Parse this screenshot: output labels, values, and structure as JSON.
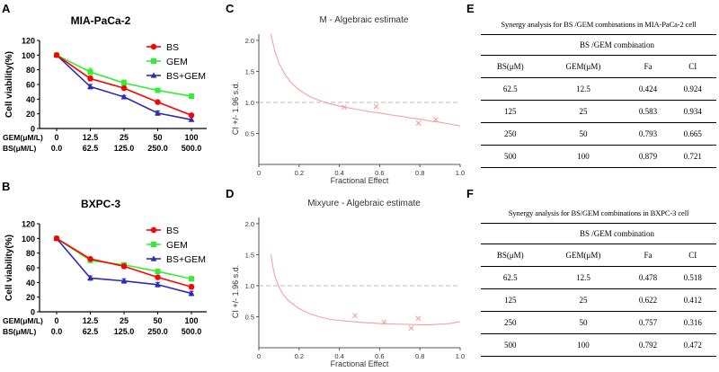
{
  "colors": {
    "bs": "#ff0000",
    "gem": "#33ee33",
    "combo": "#2b2bb8",
    "ci_curve": "#f4a0a0",
    "ref_line": "#bbbbbb"
  },
  "chart_data": [
    {
      "panel_label": "A",
      "type": "line",
      "title": "MIA-PaCa-2",
      "ylabel": "Cell viability(%)",
      "ylim": [
        0,
        120
      ],
      "yticks": [
        0,
        20,
        40,
        60,
        80,
        100,
        120
      ],
      "categories": [
        "0",
        "12.5",
        "25",
        "50",
        "100"
      ],
      "row_labels": [
        "GEM(μM/L)",
        "BS(μM/L)"
      ],
      "bs_categories": [
        "0.0",
        "62.5",
        "125.0",
        "250.0",
        "500.0"
      ],
      "series": [
        {
          "name": "BS",
          "color_key": "bs",
          "marker": "circle",
          "values": [
            100,
            68,
            55,
            36,
            18
          ],
          "errors": [
            1,
            3,
            2,
            2,
            1
          ]
        },
        {
          "name": "GEM",
          "color_key": "gem",
          "marker": "square",
          "values": [
            100,
            77,
            62,
            52,
            44
          ],
          "errors": [
            1,
            5,
            4,
            2,
            3
          ]
        },
        {
          "name": "BS+GEM",
          "color_key": "combo",
          "marker": "triangle",
          "values": [
            100,
            57,
            43,
            21,
            12
          ],
          "errors": [
            1,
            3,
            2,
            3,
            1
          ]
        }
      ]
    },
    {
      "panel_label": "B",
      "type": "line",
      "title": "BXPC-3",
      "ylabel": "Cell viability(%)",
      "ylim": [
        0,
        120
      ],
      "yticks": [
        0,
        20,
        40,
        60,
        80,
        100,
        120
      ],
      "categories": [
        "0",
        "12.5",
        "25",
        "50",
        "100"
      ],
      "row_labels": [
        "GEM(μM/L)",
        "BS(μM/L)"
      ],
      "bs_categories": [
        "0.0",
        "62.5",
        "125.0",
        "250.0",
        "500.0"
      ],
      "series": [
        {
          "name": "BS",
          "color_key": "bs",
          "marker": "circle",
          "values": [
            100,
            72,
            62,
            47,
            34
          ],
          "errors": [
            1,
            2,
            3,
            2,
            3
          ]
        },
        {
          "name": "GEM",
          "color_key": "gem",
          "marker": "square",
          "values": [
            100,
            70,
            64,
            55,
            45
          ],
          "errors": [
            1,
            2,
            2,
            2,
            3
          ]
        },
        {
          "name": "BS+GEM",
          "color_key": "combo",
          "marker": "triangle",
          "values": [
            100,
            46,
            42,
            37,
            25
          ],
          "errors": [
            1,
            3,
            3,
            3,
            3
          ]
        }
      ]
    },
    {
      "panel_label": "C",
      "type": "scatter",
      "title": "M - Algebraic estimate",
      "xlabel": "Fractional Effect",
      "ylabel": "CI +/- 1.96 s.d.",
      "xlim": [
        0,
        1
      ],
      "ylim": [
        0,
        2.1
      ],
      "xticks": [
        "0",
        "0.2",
        "0.4",
        "0.6",
        "0.8",
        "1.0"
      ],
      "yticks": [
        "0.5",
        "1.0",
        "1.5",
        "2.0"
      ],
      "reference_y": 1.0,
      "curve": {
        "x": [
          0.06,
          0.08,
          0.1,
          0.13,
          0.16,
          0.2,
          0.25,
          0.3,
          0.35,
          0.4,
          0.45,
          0.5,
          0.55,
          0.6,
          0.65,
          0.7,
          0.75,
          0.8,
          0.85,
          0.9,
          0.95,
          1.0
        ],
        "y": [
          2.1,
          1.82,
          1.63,
          1.45,
          1.32,
          1.2,
          1.1,
          1.03,
          0.98,
          0.94,
          0.91,
          0.88,
          0.85,
          0.83,
          0.8,
          0.78,
          0.75,
          0.73,
          0.7,
          0.68,
          0.65,
          0.62
        ]
      },
      "points": {
        "x": [
          0.424,
          0.583,
          0.793,
          0.879
        ],
        "y": [
          0.924,
          0.934,
          0.665,
          0.721
        ]
      }
    },
    {
      "panel_label": "D",
      "type": "scatter",
      "title": "Mixyure - Algebraic estimate",
      "xlabel": "Fractional Effect",
      "ylabel": "CI +/- 1.96 s.d.",
      "xlim": [
        0,
        1
      ],
      "ylim": [
        0,
        2.1
      ],
      "xticks": [
        "0",
        "0.2",
        "0.4",
        "0.6",
        "0.8",
        "1.0"
      ],
      "yticks": [
        "0.5",
        "1.0",
        "1.5",
        "2.0"
      ],
      "reference_y": 1.0,
      "curve": {
        "x": [
          0.06,
          0.07,
          0.08,
          0.1,
          0.12,
          0.15,
          0.2,
          0.25,
          0.3,
          0.35,
          0.4,
          0.5,
          0.6,
          0.7,
          0.8,
          0.85,
          0.9,
          0.95,
          1.0
        ],
        "y": [
          1.5,
          1.3,
          1.15,
          0.98,
          0.86,
          0.75,
          0.63,
          0.55,
          0.5,
          0.46,
          0.44,
          0.41,
          0.39,
          0.38,
          0.37,
          0.37,
          0.38,
          0.39,
          0.42
        ]
      },
      "points": {
        "x": [
          0.478,
          0.622,
          0.757,
          0.792
        ],
        "y": [
          0.518,
          0.412,
          0.316,
          0.472
        ]
      }
    }
  ],
  "tables": [
    {
      "panel_label": "E",
      "title": "Synergy analysis for BS /GEM combinations in MIA-PaCa-2 cell",
      "subheader": "BS /GEM combination",
      "columns": [
        "BS(μM)",
        "GEM(μM)",
        "Fa",
        "CI"
      ],
      "rows": [
        [
          "62.5",
          "12.5",
          "0.424",
          "0.924"
        ],
        [
          "125",
          "25",
          "0.583",
          "0.934"
        ],
        [
          "250",
          "50",
          "0.793",
          "0.665"
        ],
        [
          "500",
          "100",
          "0.879",
          "0.721"
        ]
      ]
    },
    {
      "panel_label": "F",
      "title": "Synergy analysis for BS/GEM combinations in BXPC-3 cell",
      "subheader": "BS /GEM combination",
      "columns": [
        "BS(μM)",
        "GEM(μM)",
        "Fa",
        "CI"
      ],
      "rows": [
        [
          "62.5",
          "12.5",
          "0.478",
          "0.518"
        ],
        [
          "125",
          "25",
          "0.622",
          "0.412"
        ],
        [
          "250",
          "50",
          "0.757",
          "0.316"
        ],
        [
          "500",
          "100",
          "0.792",
          "0.472"
        ]
      ]
    }
  ]
}
